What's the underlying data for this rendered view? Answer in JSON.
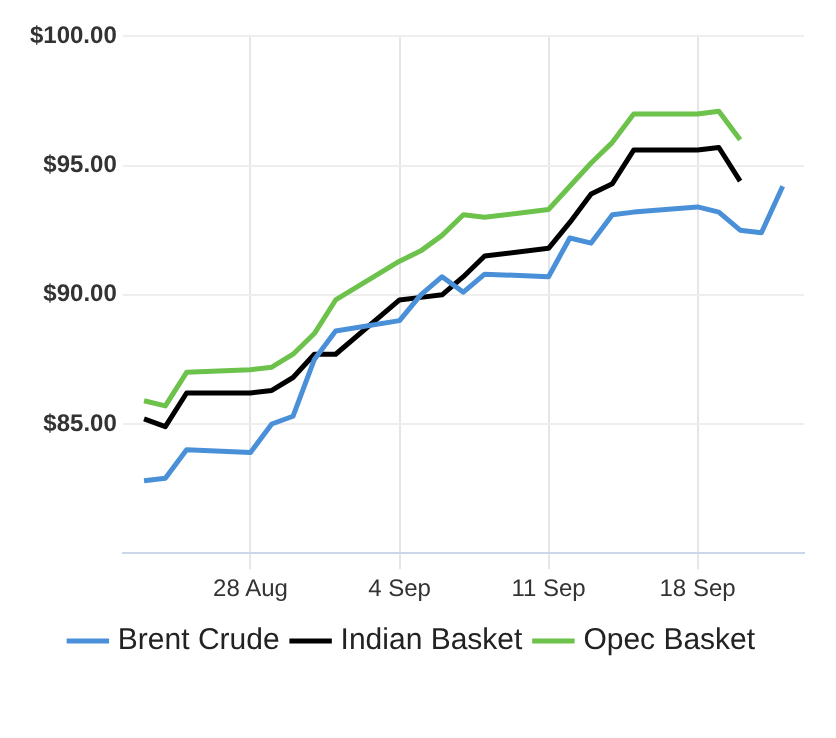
{
  "chart_data": {
    "type": "line",
    "x": [
      "--08-23",
      "--08-24",
      "--08-25",
      "--08-28",
      "--08-29",
      "--08-30",
      "--08-31",
      "--09-01",
      "--09-04",
      "--09-05",
      "--09-06",
      "--09-07",
      "--09-08",
      "--09-11",
      "--09-12",
      "--09-13",
      "--09-14",
      "--09-15",
      "--09-18",
      "--09-19",
      "--09-20",
      "--09-21",
      "--09-22"
    ],
    "series": [
      {
        "name": "Brent Crude",
        "color": "#4a90d9",
        "values": [
          82.8,
          82.9,
          84.0,
          83.9,
          85.0,
          85.3,
          87.5,
          88.6,
          89.0,
          90.0,
          90.7,
          90.1,
          90.8,
          90.7,
          92.2,
          92.0,
          93.1,
          93.2,
          93.4,
          93.2,
          92.5,
          92.4,
          94.2
        ]
      },
      {
        "name": "Indian Basket",
        "color": "#000000",
        "values": [
          85.2,
          84.9,
          86.2,
          86.2,
          86.3,
          86.8,
          87.7,
          87.7,
          89.8,
          89.9,
          90.0,
          90.7,
          91.5,
          91.8,
          92.8,
          93.9,
          94.3,
          95.6,
          95.6,
          95.7,
          94.4,
          null,
          null
        ]
      },
      {
        "name": "Opec Basket",
        "color": "#6cc24a",
        "values": [
          85.9,
          85.7,
          87.0,
          87.1,
          87.2,
          87.7,
          88.5,
          89.8,
          91.3,
          91.7,
          92.3,
          93.1,
          93.0,
          93.3,
          94.2,
          95.1,
          95.9,
          97.0,
          97.0,
          97.1,
          96.0,
          null,
          null
        ]
      }
    ],
    "xlim": [
      "--08-22",
      "--09-23"
    ],
    "xticks": [
      {
        "value": "--08-28",
        "label": "28 Aug"
      },
      {
        "value": "--09-04",
        "label": "4 Sep"
      },
      {
        "value": "--09-11",
        "label": "11 Sep"
      },
      {
        "value": "--09-18",
        "label": "18 Sep"
      }
    ],
    "ylim": [
      80,
      100
    ],
    "yticks": [
      {
        "value": 80,
        "label": null
      },
      {
        "value": 85,
        "label": "$85.00"
      },
      {
        "value": 90,
        "label": "$90.00"
      },
      {
        "value": 95,
        "label": "$95.00"
      },
      {
        "value": 100,
        "label": "$100.00"
      }
    ],
    "grid": true,
    "legend": "bottom",
    "marker": "none",
    "line_style": "solid"
  }
}
